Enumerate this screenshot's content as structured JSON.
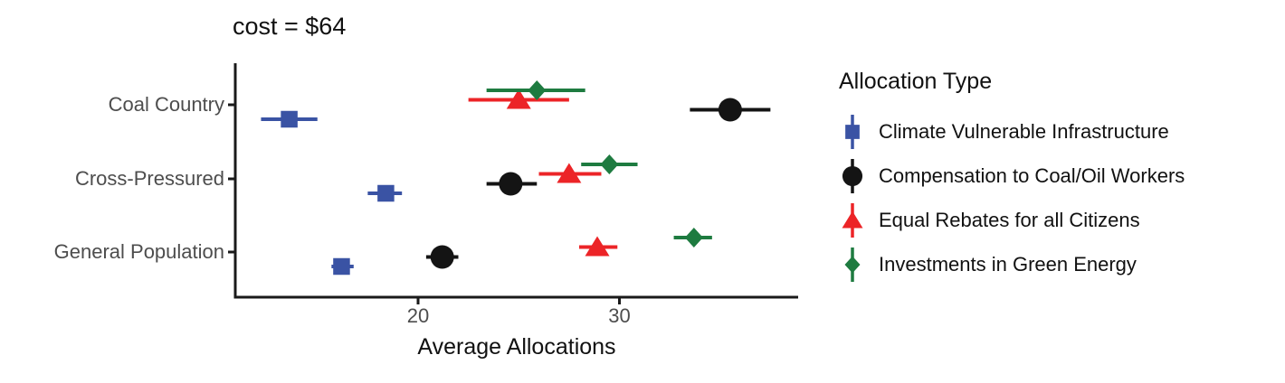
{
  "chart_data": {
    "type": "scatter",
    "subtype": "pointrange-horizontal-errorbars",
    "title": "cost = $64",
    "xlabel": "Average Allocations",
    "xticks": [
      20,
      30
    ],
    "xlim": [
      10.9,
      38.9
    ],
    "grid": false,
    "legend_title": "Allocation Type",
    "legend_position": "right",
    "categories": [
      "Coal Country",
      "Cross-Pressured",
      "General Population"
    ],
    "series": [
      {
        "name": "Climate Vulnerable Infrastructure",
        "shape": "square",
        "color": "#3A53A4",
        "values": [
          13.6,
          18.4,
          16.2
        ],
        "ranges": [
          [
            12.2,
            15.0
          ],
          [
            17.5,
            19.2
          ],
          [
            15.7,
            16.8
          ]
        ]
      },
      {
        "name": "Compensation to Coal/Oil Workers",
        "shape": "circle",
        "color": "#141414",
        "values": [
          35.5,
          24.6,
          21.2
        ],
        "ranges": [
          [
            33.5,
            37.5
          ],
          [
            23.4,
            25.9
          ],
          [
            20.4,
            22.0
          ]
        ]
      },
      {
        "name": "Equal Rebates for all Citizens",
        "shape": "triangle",
        "color": "#EC2427",
        "values": [
          25.0,
          27.5,
          28.9
        ],
        "ranges": [
          [
            22.5,
            27.5
          ],
          [
            26.0,
            29.1
          ],
          [
            28.0,
            29.9
          ]
        ]
      },
      {
        "name": "Investments in Green Energy",
        "shape": "diamond",
        "color": "#1E7B40",
        "values": [
          25.9,
          29.5,
          33.7
        ],
        "ranges": [
          [
            23.4,
            28.3
          ],
          [
            28.1,
            30.9
          ],
          [
            32.7,
            34.6
          ]
        ]
      }
    ],
    "axis_color": "#1a1a1a",
    "tick_label_color": "#4d4d4d"
  }
}
